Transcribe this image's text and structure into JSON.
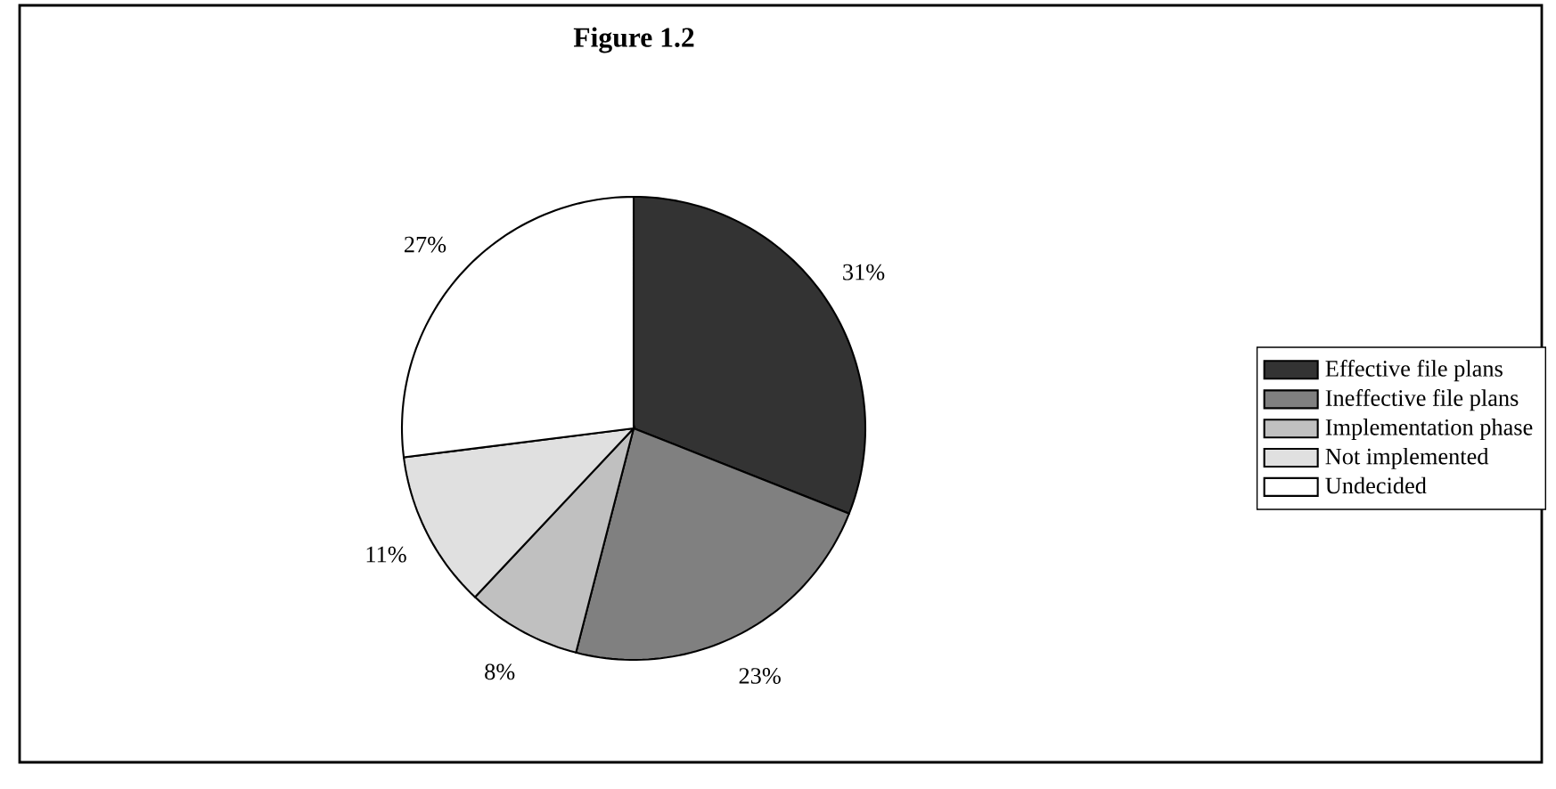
{
  "chart_data": {
    "type": "pie",
    "title": "Figure 1.2",
    "categories": [
      "Effective file plans",
      "Ineffective file plans",
      "Implementation phase",
      "Not implemented",
      "Undecided"
    ],
    "values": [
      31,
      23,
      8,
      11,
      27
    ],
    "value_labels": [
      "31%",
      "23%",
      "8%",
      "11%",
      "27%"
    ],
    "colors": [
      "#333333",
      "#808080",
      "#c0c0c0",
      "#e0e0e0",
      "#ffffff"
    ],
    "legend": "right"
  }
}
